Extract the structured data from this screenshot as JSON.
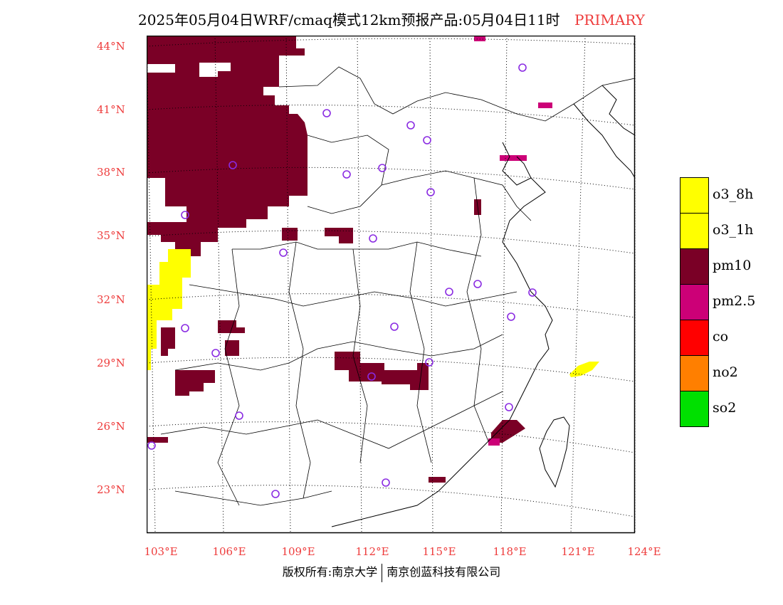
{
  "header": {
    "title": "2025年05月04日WRF/cmaq模式12km预报产品:05月04日11时",
    "tag": "PRIMARY"
  },
  "axes": {
    "lat_labels": [
      "44°N",
      "41°N",
      "38°N",
      "35°N",
      "32°N",
      "29°N",
      "26°N",
      "23°N"
    ],
    "lon_labels": [
      "103°E",
      "106°E",
      "109°E",
      "112°E",
      "115°E",
      "118°E",
      "121°E",
      "124°E"
    ]
  },
  "legend": [
    {
      "label": "o3_8h",
      "color": "#ffff00"
    },
    {
      "label": "o3_1h",
      "color": "#ffff00"
    },
    {
      "label": "pm10",
      "color": "#7a0026"
    },
    {
      "label": "pm2.5",
      "color": "#cc0077"
    },
    {
      "label": "co",
      "color": "#ff0000"
    },
    {
      "label": "no2",
      "color": "#ff7f00"
    },
    {
      "label": "so2",
      "color": "#00e000"
    }
  ],
  "footer": {
    "left": "版权所有:南京大学",
    "right": "南京创蓝科技有限公司"
  },
  "colors": {
    "pm10": "#7a0026",
    "pm25": "#cc0077",
    "o3": "#ffff00",
    "station": "#8a2be2",
    "label": "#ee3b3b"
  }
}
